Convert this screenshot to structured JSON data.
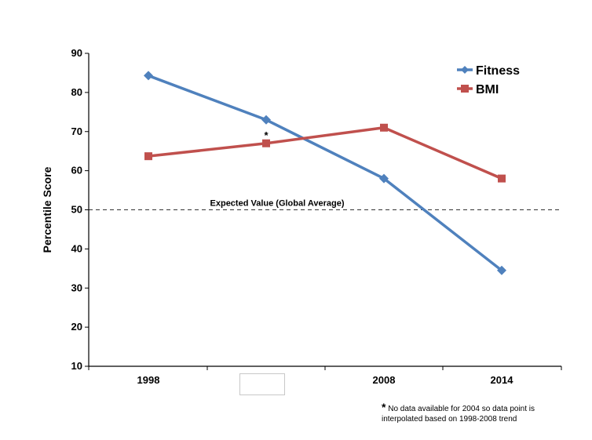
{
  "chart_data": {
    "type": "line",
    "categories": [
      "1998",
      "",
      "2008",
      "2014"
    ],
    "ylabel": "Percentile Score",
    "ylim": [
      10,
      90
    ],
    "yticks": [
      10,
      20,
      30,
      40,
      50,
      60,
      70,
      80,
      90
    ],
    "legend_position": "top-right",
    "series": [
      {
        "name": "Fitness",
        "color": "#4f81bd",
        "marker": "diamond",
        "values": [
          84.3,
          73,
          58,
          34.5
        ]
      },
      {
        "name": "BMI",
        "color": "#c0504d",
        "marker": "square",
        "values": [
          63.7,
          67,
          71,
          58
        ]
      }
    ],
    "reference_line": {
      "label": "Expected Value (Global Average)",
      "value": 50
    },
    "annotation": {
      "text": "*",
      "category_index": 1
    },
    "footnote": {
      "marker": "*",
      "text": "No data available for 2004 so data point is interpolated based on 1998-2008 trend"
    }
  }
}
